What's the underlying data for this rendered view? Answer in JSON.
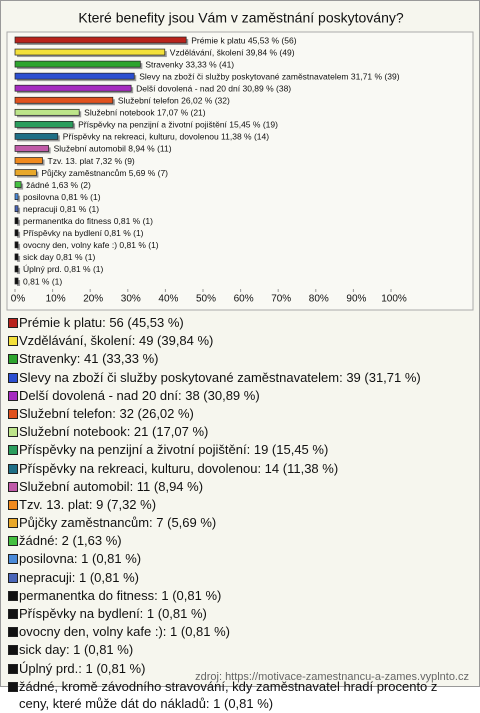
{
  "chart_data": {
    "type": "bar",
    "orientation": "horizontal",
    "title": "Které benefity jsou Vám v zaměstnání poskytovány?",
    "categories": [
      "Prémie k platu",
      "Vzdělávání, školení",
      "Stravenky",
      "Slevy na zboží či služby poskytované zaměstnavatelem",
      "Delší dovolená - nad 20 dní",
      "Služební telefon",
      "Služební notebook",
      "Příspěvky na penzijní a životní pojištění",
      "Příspěvky na rekreaci, kulturu, dovolenou",
      "Služební automobil",
      "Tzv. 13. plat",
      "Půjčky zaměstnancům",
      "žádné",
      "posilovna",
      "nepracuji",
      "permanentka do fitness",
      "Příspěvky na bydlení",
      "ovocny den, volny kafe :)",
      "sick day",
      "Úplný prd.",
      "žádné, kromě závodního stravování, kdy zaměstnavatel hradí procento z ceny, které může dát do nákladů"
    ],
    "values": [
      45.53,
      39.84,
      33.33,
      31.71,
      30.89,
      26.02,
      17.07,
      15.45,
      11.38,
      8.94,
      7.32,
      5.69,
      1.63,
      0.81,
      0.81,
      0.81,
      0.81,
      0.81,
      0.81,
      0.81,
      0.81
    ],
    "value_labels": [
      "Prémie k platu 45,53 % (56)",
      "Vzdělávání, školení 39,84 % (49)",
      "Stravenky 33,33 % (41)",
      "Slevy na zboží či služby poskytované zaměstnavatelem 31,71 % (39)",
      "Delší dovolená - nad 20 dní 30,89 % (38)",
      "Služební telefon 26,02 % (32)",
      "Služební notebook 17,07 % (21)",
      "Příspěvky na penzijní a životní pojištění 15,45 % (19)",
      "Příspěvky na rekreaci, kulturu, dovolenou 11,38 % (14)",
      "Služební automobil 8,94 % (11)",
      "Tzv. 13. plat 7,32 % (9)",
      "Půjčky zaměstnancům 5,69 % (7)",
      "žádné 1,63 % (2)",
      "posilovna 0,81 % (1)",
      "nepracuji 0,81 % (1)",
      "permanentka do fitness 0,81 % (1)",
      "Příspěvky na bydlení 0,81 % (1)",
      "ovocny den, volny kafe :) 0,81 % (1)",
      "sick day 0,81 % (1)",
      "Úplný prd. 0,81 % (1)",
      "0,81 % (1)"
    ],
    "legend_labels": [
      "Prémie k platu: 56 (45,53 %)",
      "Vzdělávání, školení: 49 (39,84 %)",
      "Stravenky: 41 (33,33 %)",
      "Slevy na zboží či služby poskytované zaměstnavatelem: 39 (31,71 %)",
      "Delší dovolená - nad 20 dní: 38 (30,89 %)",
      "Služební telefon: 32 (26,02 %)",
      "Služební notebook: 21 (17,07 %)",
      "Příspěvky na penzijní a životní pojištění: 19 (15,45 %)",
      "Příspěvky na rekreaci, kulturu, dovolenou: 14 (11,38 %)",
      "Služební automobil: 11 (8,94 %)",
      "Tzv. 13. plat: 9 (7,32 %)",
      "Půjčky zaměstnancům: 7 (5,69 %)",
      "žádné: 2 (1,63 %)",
      "posilovna: 1 (0,81 %)",
      "nepracuji: 1 (0,81 %)",
      "permanentka do fitness: 1 (0,81 %)",
      "Příspěvky na bydlení: 1 (0,81 %)",
      "ovocny den, volny kafe :): 1 (0,81 %)",
      "sick day: 1 (0,81 %)",
      "Úplný prd.: 1 (0,81 %)",
      "žádné, kromě závodního stravování, kdy zaměstnavatel hradí procento z ceny, které může dát do nákladů: 1 (0,81 %)"
    ],
    "colors": [
      "#b8231c",
      "#f3e03a",
      "#2da42d",
      "#2c4fd0",
      "#a52bc0",
      "#e0521e",
      "#bde58a",
      "#2a9d5c",
      "#1f6f86",
      "#c05aa8",
      "#f08a1e",
      "#e8a82a",
      "#44c040",
      "#4a8ad8",
      "#4a66b8",
      "#111111",
      "#111111",
      "#111111",
      "#111111",
      "#111111",
      "#111111"
    ],
    "xlim": [
      0,
      100
    ],
    "xticks": [
      {
        "value": 0,
        "label": "0%"
      },
      {
        "value": 10,
        "label": "10%"
      },
      {
        "value": 20,
        "label": "20%"
      },
      {
        "value": 30,
        "label": "30%"
      },
      {
        "value": 40,
        "label": "40%"
      },
      {
        "value": 50,
        "label": "50%"
      },
      {
        "value": 60,
        "label": "60%"
      },
      {
        "value": 70,
        "label": "70%"
      },
      {
        "value": 80,
        "label": "80%"
      },
      {
        "value": 90,
        "label": "90%"
      },
      {
        "value": 100,
        "label": "100%"
      }
    ],
    "source": "zdroj: https://motivace-zamestnancu-a-zames.vyplnto.cz"
  }
}
